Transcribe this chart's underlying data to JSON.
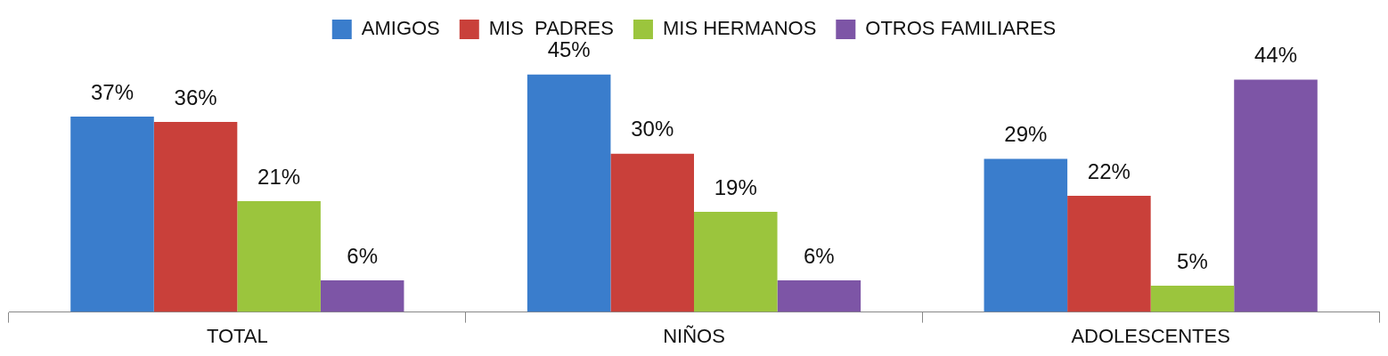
{
  "chart_data": {
    "type": "bar",
    "categories": [
      "TOTAL",
      "NIÑOS",
      "ADOLESCENTES"
    ],
    "series": [
      {
        "name": "AMIGOS",
        "color": "#3a7dcc",
        "values": [
          37,
          45,
          29
        ],
        "value_labels": [
          "37%",
          "45%",
          "29%"
        ]
      },
      {
        "name": "MIS  PADRES",
        "color": "#c9403a",
        "values": [
          36,
          30,
          22
        ],
        "value_labels": [
          "36%",
          "30%",
          "22%"
        ]
      },
      {
        "name": "MIS HERMANOS",
        "color": "#9bc53d",
        "values": [
          21,
          19,
          5
        ],
        "value_labels": [
          "21%",
          "19%",
          "5%"
        ]
      },
      {
        "name": "OTROS FAMILIARES",
        "color": "#7d55a6",
        "values": [
          6,
          6,
          44
        ],
        "value_labels": [
          "6%",
          "6%",
          "44%"
        ]
      }
    ],
    "legend": "top",
    "grid": false,
    "tick_labels": "x"
  }
}
